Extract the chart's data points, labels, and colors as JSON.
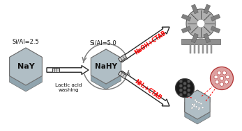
{
  "bg_color": "#ffffff",
  "hex_color_main": "#b0bec5",
  "hex_color_dark": "#90a4ae",
  "text_NaY": "NaY",
  "text_NaHY": "NaHY",
  "text_lactic": "Lactic acid\nwashing",
  "text_siAl1": "Si/Al=2.5",
  "text_siAl2": "Si/Al=5.0",
  "text_arrow1": "NaOH+CTAB",
  "text_arrow2": "NH₃+CTAB",
  "arrow_color": "#ff0000",
  "gray_dark": "#606060",
  "gray_mid": "#909090",
  "gray_light": "#c0c0c0"
}
